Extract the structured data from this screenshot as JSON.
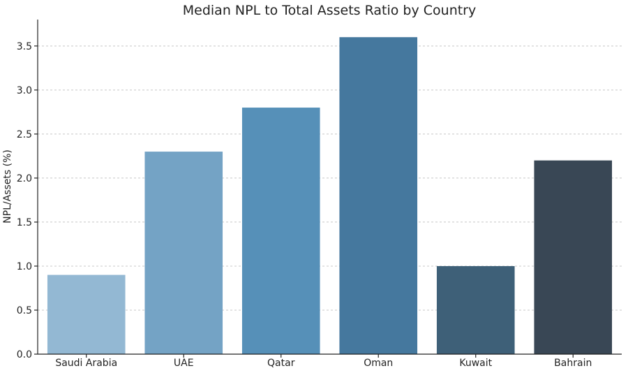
{
  "chart_data": {
    "type": "bar",
    "title": "Median NPL to Total Assets Ratio by Country",
    "xlabel": "",
    "ylabel": "NPL/Assets (%)",
    "categories": [
      "Saudi Arabia",
      "UAE",
      "Qatar",
      "Oman",
      "Kuwait",
      "Bahrain"
    ],
    "values": [
      0.9,
      2.3,
      2.8,
      3.6,
      1.0,
      2.2
    ],
    "colors": [
      "#93b8d3",
      "#74a3c5",
      "#5690b8",
      "#45789e",
      "#3e6078",
      "#394755"
    ],
    "ylim": [
      0,
      3.8
    ],
    "yticks": [
      "0.0",
      "0.5",
      "1.0",
      "1.5",
      "2.0",
      "2.5",
      "3.0",
      "3.5"
    ],
    "grid": "horizontal-dashed",
    "legend": "none"
  }
}
